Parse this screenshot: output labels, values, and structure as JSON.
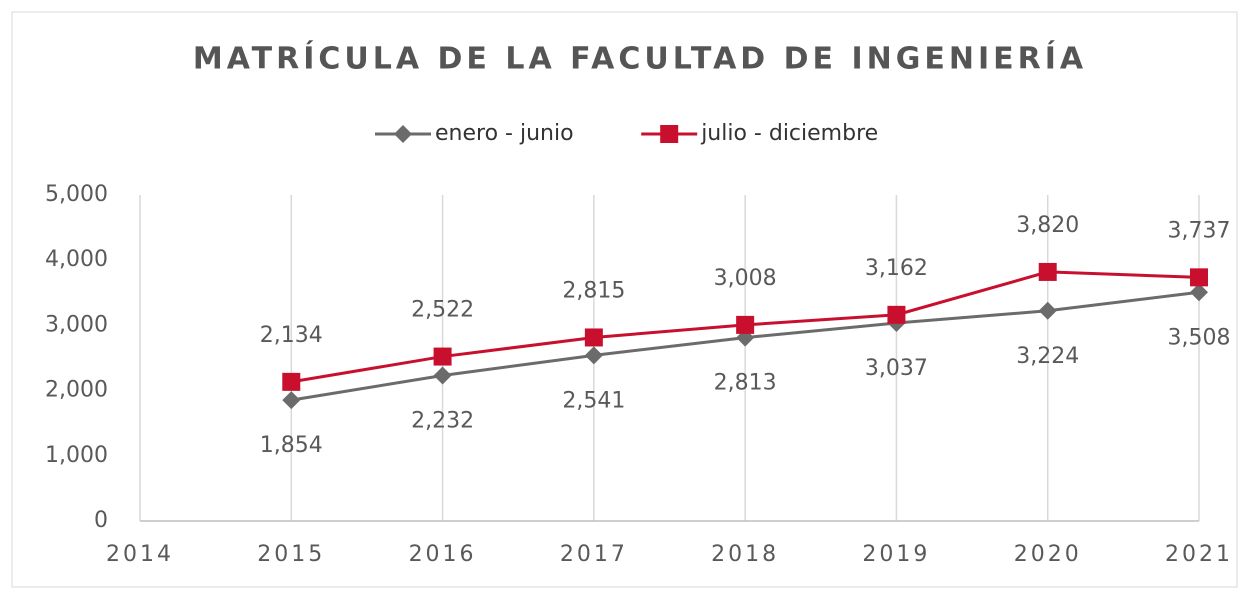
{
  "chart_data": {
    "type": "line",
    "title": "MATRÍCULA DE LA FACULTAD DE INGENIERÍA",
    "x": [
      2015,
      2016,
      2017,
      2018,
      2019,
      2020,
      2021
    ],
    "series": [
      {
        "name": "enero - junio",
        "color": "#6b6b6b",
        "marker": "diamond",
        "values": [
          1854,
          2232,
          2541,
          2813,
          3037,
          3224,
          3508
        ],
        "value_labels": [
          "1,854",
          "2,232",
          "2,541",
          "2,813",
          "3,037",
          "3,224",
          "3,508"
        ]
      },
      {
        "name": "julio - diciembre",
        "color": "#c8102e",
        "marker": "square",
        "values": [
          2134,
          2522,
          2815,
          3008,
          3162,
          3820,
          3737
        ],
        "value_labels": [
          "2,134",
          "2,522",
          "2,815",
          "3,008",
          "3,162",
          "3,820",
          "3,737"
        ]
      }
    ],
    "xlim": [
      2014,
      2021
    ],
    "xticks": [
      2014,
      2015,
      2016,
      2017,
      2018,
      2019,
      2020,
      2021
    ],
    "ylim": [
      0,
      5000
    ],
    "yticks": [
      0,
      {
        "value": 1000,
        "label": "1,000"
      },
      {
        "value": 2000,
        "label": "2,000"
      },
      {
        "value": 3000,
        "label": "3,000"
      },
      {
        "value": 4000,
        "label": "4,000"
      },
      {
        "value": 5000,
        "label": "5,000"
      }
    ],
    "grid": "x",
    "legend": "top"
  }
}
